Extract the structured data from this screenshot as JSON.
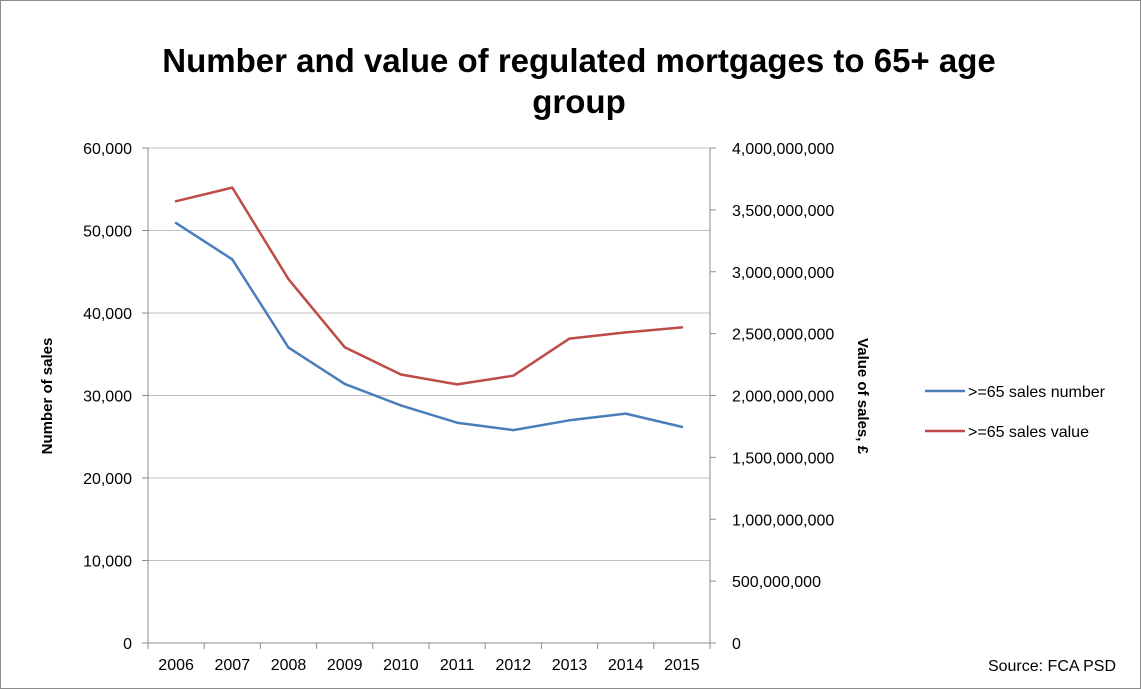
{
  "chart_data": {
    "type": "line",
    "title_lines": [
      "Number and value of regulated mortgages to 65+ age",
      "group"
    ],
    "categories": [
      "2006",
      "2007",
      "2008",
      "2009",
      "2010",
      "2011",
      "2012",
      "2013",
      "2014",
      "2015"
    ],
    "y_left": {
      "label": "Number of sales",
      "range": [
        0,
        60000
      ],
      "ticks": [
        0,
        10000,
        20000,
        30000,
        40000,
        50000,
        60000
      ],
      "tick_labels": [
        "0",
        "10,000",
        "20,000",
        "30,000",
        "40,000",
        "50,000",
        "60,000"
      ]
    },
    "y_right": {
      "label": "Value of sales, £",
      "range": [
        0,
        4000000000
      ],
      "ticks": [
        0,
        500000000,
        1000000000,
        1500000000,
        2000000000,
        2500000000,
        3000000000,
        3500000000,
        4000000000
      ],
      "tick_labels": [
        "0",
        "500,000,000",
        "1,000,000,000",
        "1,500,000,000",
        "2,000,000,000",
        "2,500,000,000",
        "3,000,000,000",
        "3,500,000,000",
        "4,000,000,000"
      ]
    },
    "series": [
      {
        "name": ">=65 sales number",
        "axis": "left",
        "color": "#4a7ebb",
        "values": [
          50900,
          46500,
          35800,
          31400,
          28800,
          26700,
          25800,
          27000,
          27800,
          26200
        ]
      },
      {
        "name": ">=65 sales value",
        "axis": "right",
        "color": "#be4b48",
        "values": [
          3570000000,
          3680000000,
          2940000000,
          2390000000,
          2170000000,
          2090000000,
          2160000000,
          2460000000,
          2510000000,
          2550000000
        ]
      }
    ],
    "grid": "horizontal",
    "legend_position": "right",
    "source": "Source: FCA PSD"
  }
}
